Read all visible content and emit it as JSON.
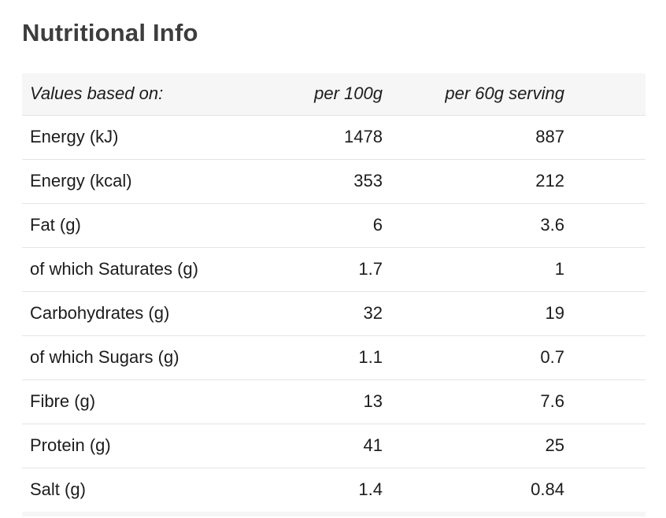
{
  "page": {
    "title": "Nutritional Info"
  },
  "table": {
    "header": {
      "label": "Values based on:",
      "per_100g": "per 100g",
      "per_serving": "per 60g serving"
    },
    "rows": [
      {
        "label": "Energy (kJ)",
        "per_100g": "1478",
        "per_serving": "887"
      },
      {
        "label": "Energy (kcal)",
        "per_100g": "353",
        "per_serving": "212"
      },
      {
        "label": "Fat (g)",
        "per_100g": "6",
        "per_serving": "3.6"
      },
      {
        "label": "of which Saturates (g)",
        "per_100g": "1.7",
        "per_serving": "1"
      },
      {
        "label": "Carbohydrates (g)",
        "per_100g": "32",
        "per_serving": "19"
      },
      {
        "label": "of which Sugars (g)",
        "per_100g": "1.1",
        "per_serving": "0.7"
      },
      {
        "label": "Fibre (g)",
        "per_100g": "13",
        "per_serving": "7.6"
      },
      {
        "label": "Protein (g)",
        "per_100g": "41",
        "per_serving": "25"
      },
      {
        "label": "Salt (g)",
        "per_100g": "1.4",
        "per_serving": "0.84"
      }
    ]
  },
  "colors": {
    "title_color": "#3d3d3d",
    "text_color": "#1c1c1c",
    "header_bg": "#f6f6f6",
    "row_border": "#e4e4e4",
    "page_bg": "#ffffff"
  }
}
